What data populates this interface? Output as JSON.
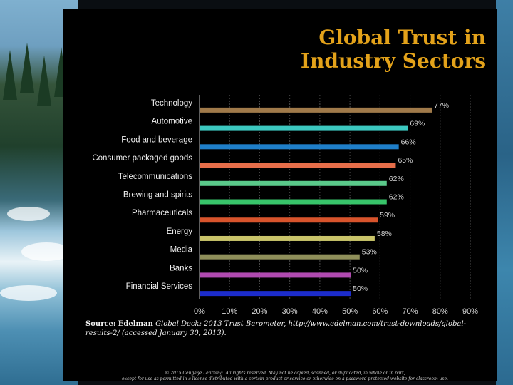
{
  "slide": {
    "title_line1": "Global Trust in",
    "title_line2": "Industry Sectors",
    "source_label": "Source:",
    "source_publisher": "Edelman",
    "source_text": "Global Deck: 2013 Trust Barometer, http://www.edelman.com/trust-downloads/global-results-2/ (accessed January 30, 2013).",
    "footer_line1": "© 2015 Cengage Learning. All rights reserved. May not be copied, scanned, or duplicated, in whole or in part,",
    "footer_line2": "except for use as permitted in a license distributed with a certain product or service or otherwise on a password-protected website for classroom use."
  },
  "chart_data": {
    "type": "bar",
    "orientation": "horizontal",
    "categories": [
      "Technology",
      "Automotive",
      "Food and beverage",
      "Consumer packaged goods",
      "Telecommunications",
      "Brewing and spirits",
      "Pharmaceuticals",
      "Energy",
      "Media",
      "Banks",
      "Financial Services"
    ],
    "values": [
      77,
      69,
      66,
      65,
      62,
      62,
      59,
      58,
      53,
      50,
      50
    ],
    "data_labels": [
      "77%",
      "69%",
      "66%",
      "65%",
      "62%",
      "62%",
      "59%",
      "58%",
      "53%",
      "50%",
      "50%"
    ],
    "colors": [
      "#a07a4a",
      "#3cc8c0",
      "#1f7fc9",
      "#e66e4a",
      "#5ac98a",
      "#38c46a",
      "#d8542c",
      "#c9c46a",
      "#8f8f5a",
      "#b04ab0",
      "#1c2ccc"
    ],
    "xlim": [
      0,
      90
    ],
    "xticks": [
      "0%",
      "10%",
      "20%",
      "30%",
      "40%",
      "50%",
      "60%",
      "70%",
      "80%",
      "90%"
    ],
    "title": "",
    "xlabel": "",
    "ylabel": "",
    "grid": true
  }
}
